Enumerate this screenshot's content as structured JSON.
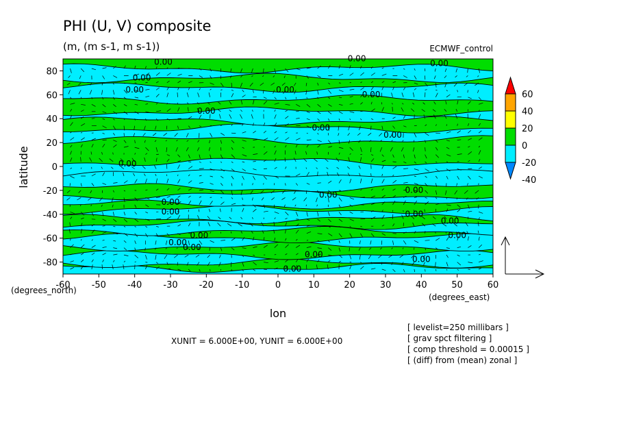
{
  "chart_data": {
    "type": "heatmap",
    "title": "PHI (U, V) composite",
    "subtitle": "(m, (m s-1, m s-1))",
    "dataset": "ECMWF_control",
    "xlabel": "lon",
    "ylabel": "latitude",
    "x_unit_label": "(degrees_east)",
    "y_unit_label": "(degrees_north)",
    "xlim": [
      -60,
      60
    ],
    "ylim": [
      -90,
      90
    ],
    "x_ticks": [
      "-60",
      "-50",
      "-40",
      "-30",
      "-20",
      "-10",
      "0",
      "10",
      "20",
      "30",
      "40",
      "50",
      "60"
    ],
    "y_ticks": [
      "-80",
      "-60",
      "-40",
      "-20",
      "0",
      "20",
      "40",
      "60",
      "80"
    ],
    "contour_label": "0.00",
    "colorbar": {
      "ticks": [
        "60",
        "40",
        "20",
        "0",
        "-20",
        "-40"
      ],
      "colors": {
        "above_40": "#ff0000",
        "20_to_40": "#ffa500",
        "0_to_20": "#ffff00",
        "neg20_to_0": "#00dd00",
        "neg40_to_neg20": "#00eeff",
        "below_neg40": "#0088ff"
      }
    },
    "field_colors": {
      "positive": "#00dd00",
      "negative": "#00eeff"
    },
    "vector_units": "XUNIT = 6.000E+00, YUNIT = 6.000E+00",
    "notes": [
      "[ levelist=250 millibars ]",
      "[ grav spct filtering ]",
      "[ comp threshold = 0.00015 ]",
      "[ (diff) from (mean) zonal ]"
    ],
    "bands": [
      [
        -90,
        -85,
        "c"
      ],
      [
        -85,
        -81,
        "g"
      ],
      [
        -81,
        -74,
        "c"
      ],
      [
        -74,
        -67,
        "g"
      ],
      [
        -67,
        -60,
        "c"
      ],
      [
        -60,
        -54,
        "g"
      ],
      [
        -54,
        -49,
        "c"
      ],
      [
        -49,
        -44,
        "g"
      ],
      [
        -44,
        -36,
        "c"
      ],
      [
        -36,
        -32,
        "g"
      ],
      [
        -32,
        -24,
        "c"
      ],
      [
        -24,
        -18,
        "g"
      ],
      [
        -18,
        -6,
        "c"
      ],
      [
        -6,
        4,
        "c"
      ],
      [
        4,
        22,
        "g"
      ],
      [
        22,
        32,
        "c"
      ],
      [
        32,
        38,
        "g"
      ],
      [
        38,
        46,
        "c"
      ],
      [
        46,
        56,
        "g"
      ],
      [
        56,
        66,
        "c"
      ],
      [
        66,
        74,
        "g"
      ],
      [
        74,
        82,
        "c"
      ],
      [
        82,
        90,
        "g"
      ]
    ]
  }
}
